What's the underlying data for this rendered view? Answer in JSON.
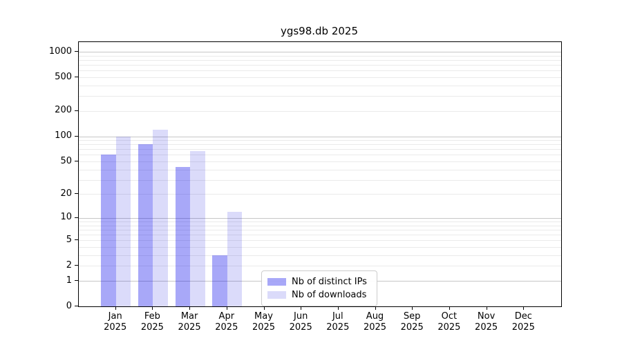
{
  "chart_data": {
    "type": "bar",
    "title": "ygs98.db 2025",
    "x": {
      "months": [
        "Jan",
        "Feb",
        "Mar",
        "Apr",
        "May",
        "Jun",
        "Jul",
        "Aug",
        "Sep",
        "Oct",
        "Nov",
        "Dec"
      ],
      "year": "2025"
    },
    "series": [
      {
        "name": "Nb of distinct IPs",
        "color": "rgba(0,0,235,0.34)",
        "values": [
          60,
          80,
          43,
          3,
          0,
          0,
          0,
          0,
          0,
          0,
          0,
          0
        ]
      },
      {
        "name": "Nb of downloads",
        "color": "rgba(0,0,220,0.14)",
        "values": [
          100,
          120,
          66,
          12,
          0,
          0,
          0,
          0,
          0,
          0,
          0,
          0
        ]
      }
    ],
    "y_axis": {
      "scale": "log1p",
      "tick_values": [
        0,
        1,
        2,
        5,
        10,
        20,
        50,
        100,
        200,
        500,
        1000
      ],
      "major_grid_values": [
        1,
        10,
        100,
        1000
      ],
      "minor_grid_values": [
        2,
        3,
        4,
        5,
        6,
        7,
        8,
        9,
        20,
        30,
        40,
        50,
        60,
        70,
        80,
        90,
        200,
        300,
        400,
        500,
        600,
        700,
        800,
        900
      ],
      "ylim": [
        0,
        1300
      ]
    },
    "legend": {
      "position": "lower-center",
      "entries": [
        "Nb of distinct IPs",
        "Nb of downloads"
      ]
    },
    "grid": "on",
    "bar_width_fraction": 0.4
  },
  "colors": {
    "background": "#ffffff",
    "spine": "#000000",
    "major_grid": "#c6c6c6",
    "minor_grid": "#eaeaea"
  }
}
